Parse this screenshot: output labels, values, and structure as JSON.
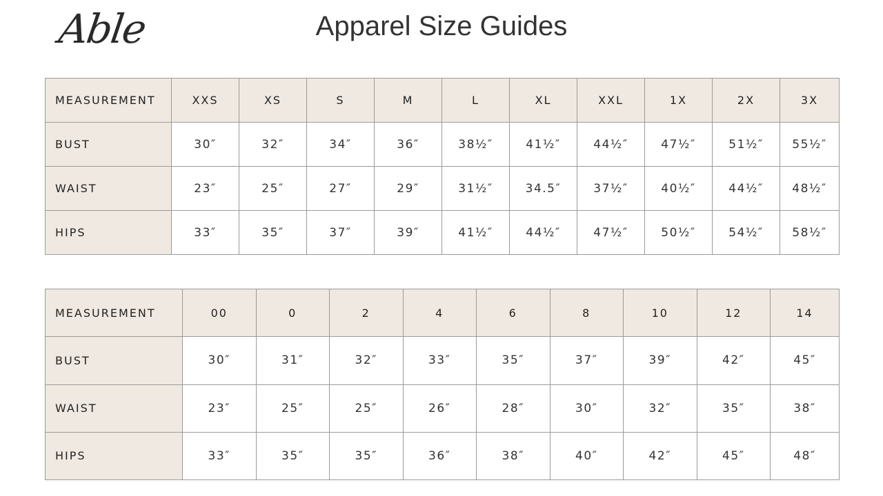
{
  "brand": {
    "logo_text": "Able"
  },
  "title": "Apparel Size Guides",
  "colors": {
    "header_bg": "#efe9e1",
    "border": "#9a9a9a"
  },
  "letter_sizes": {
    "headers": [
      "MEASUREMENT",
      "XXS",
      "XS",
      "S",
      "M",
      "L",
      "XL",
      "XXL",
      "1X",
      "2X",
      "3X"
    ],
    "rows": [
      {
        "label": "BUST",
        "values": [
          "30″",
          "32″",
          "34″",
          "36″",
          "38½″",
          "41½″",
          "44½″",
          "47½″",
          "51½″",
          "55½″"
        ]
      },
      {
        "label": "WAIST",
        "values": [
          "23″",
          "25″",
          "27″",
          "29″",
          "31½″",
          "34.5″",
          "37½″",
          "40½″",
          "44½″",
          "48½″"
        ]
      },
      {
        "label": "HIPS",
        "values": [
          "33″",
          "35″",
          "37″",
          "39″",
          "41½″",
          "44½″",
          "47½″",
          "50½″",
          "54½″",
          "58½″"
        ]
      }
    ]
  },
  "numeric_sizes": {
    "headers": [
      "MEASUREMENT",
      "00",
      "0",
      "2",
      "4",
      "6",
      "8",
      "10",
      "12",
      "14"
    ],
    "rows": [
      {
        "label": "BUST",
        "values": [
          "30″",
          "31″",
          "32″",
          "33″",
          "35″",
          "37″",
          "39″",
          "42″",
          "45″"
        ]
      },
      {
        "label": "WAIST",
        "values": [
          "23″",
          "25″",
          "25″",
          "26″",
          "28″",
          "30″",
          "32″",
          "35″",
          "38″"
        ]
      },
      {
        "label": "HIPS",
        "values": [
          "33″",
          "35″",
          "35″",
          "36″",
          "38″",
          "40″",
          "42″",
          "45″",
          "48″"
        ]
      }
    ]
  }
}
